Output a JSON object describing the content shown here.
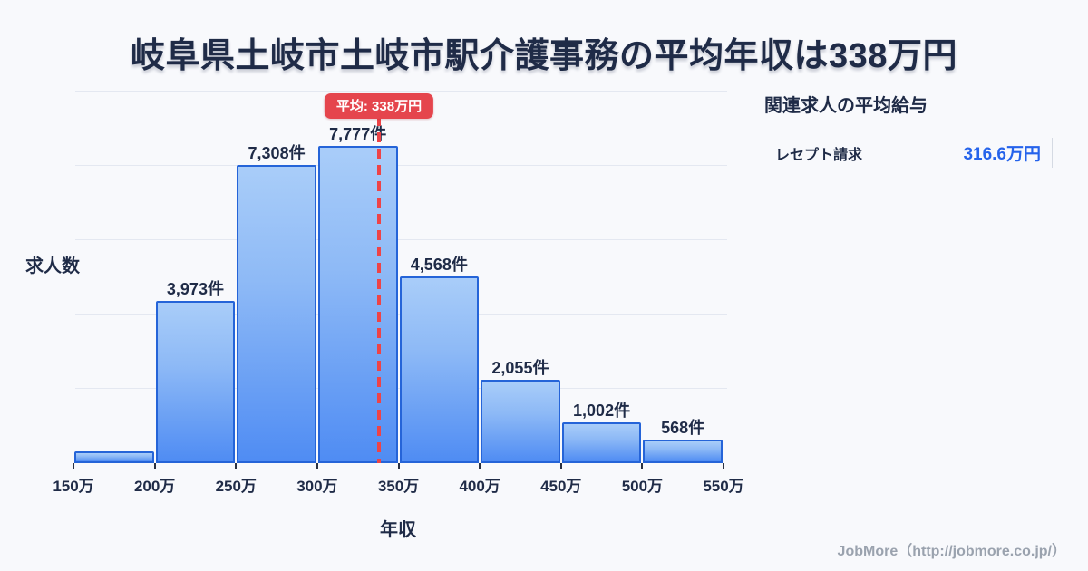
{
  "title": "岐阜県土岐市土岐市駅介護事務の平均年収は338万円",
  "chart_data": {
    "type": "bar",
    "subtype": "histogram",
    "title": "",
    "xlabel": "年収",
    "ylabel": "求人数",
    "x_bin_edges": [
      150,
      200,
      250,
      300,
      350,
      400,
      450,
      500,
      550
    ],
    "x_tick_labels": [
      "150万",
      "200万",
      "250万",
      "300万",
      "350万",
      "400万",
      "450万",
      "500万",
      "550万"
    ],
    "values": [
      290,
      3973,
      7308,
      7777,
      4568,
      2055,
      1002,
      568
    ],
    "value_labels": [
      "",
      "3,973件",
      "7,308件",
      "7,777件",
      "4,568件",
      "2,055件",
      "1,002件",
      "568件"
    ],
    "y_max_value": 7777,
    "grid": true,
    "average": {
      "value": 338,
      "badge_label": "平均: 338万円"
    }
  },
  "side_panel": {
    "header": "関連求人の平均給与",
    "rows": [
      {
        "label": "レセプト請求",
        "value": "316.6万円"
      }
    ]
  },
  "footer": {
    "credit": "JobMore（http://jobmore.co.jp/）"
  },
  "colors": {
    "background": "#f8f9fc",
    "text_dark": "#1f2b47",
    "bar_gradient_top": "#a9cdf9",
    "bar_gradient_bottom": "#4f8cf3",
    "bar_border": "#2564d8",
    "gridline": "#e4e8f1",
    "average_red": "#e5454d",
    "value_blue": "#2563eb",
    "footer_gray": "#9aa2ae"
  }
}
